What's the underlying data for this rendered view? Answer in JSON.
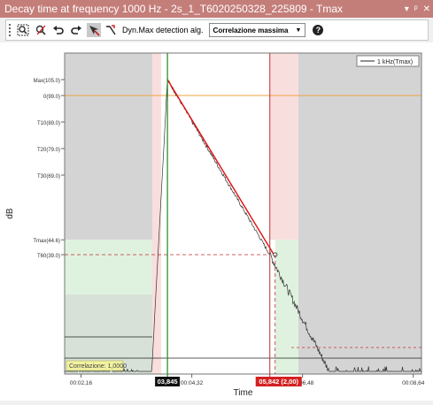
{
  "window": {
    "title": "Decay time at frequency 1000 Hz - 2s_1_T6020250328_225809 - Tmax",
    "controls": [
      "▾",
      "ᵖ",
      "✕"
    ]
  },
  "toolbar": {
    "icons": [
      "zoom-extents-icon",
      "zoom-reset-icon",
      "undo-icon",
      "redo-icon",
      "cursor-tool-icon",
      "dyn-max-icon",
      "help-icon"
    ],
    "dyn_label": "Dyn.Max detection alg.",
    "method_value": "Correlazione massima",
    "help_label": "?"
  },
  "colors": {
    "title_bar": "#c47e7a",
    "regression_line": "#e01010",
    "start_cursor": "#1a8a1a",
    "end_cursor": "#c03030",
    "orange_level": "#f0a040",
    "gray_region": "#d4d4d4",
    "pink_region": "#f9dede",
    "green_region": "#dff2df"
  },
  "chart_data": {
    "type": "line",
    "xlabel": "Time",
    "ylabel": "dB",
    "x_ticks": [
      "00:02,16",
      "00:04,32",
      "00:06,48",
      "00:08,64"
    ],
    "y_levels": [
      {
        "label": "Max(105.0)",
        "value": 105.0
      },
      {
        "label": "0(99.0)",
        "value": 99.0
      },
      {
        "label": "T10(89.0)",
        "value": 89.0
      },
      {
        "label": "T20(79.0)",
        "value": 79.0
      },
      {
        "label": "T30(69.0)",
        "value": 69.0
      },
      {
        "label": "Tmax(44.6)",
        "value": 44.6
      },
      {
        "label": "T60(39.0)",
        "value": 39.0
      }
    ],
    "ylim": [
      -6,
      115
    ],
    "xlim_s": [
      1.84,
      8.8
    ],
    "legend": {
      "label": "1 kHz(Tmax)",
      "placement": "top-right"
    },
    "correlation_label": "Correlazione: 1,0000",
    "start_cursor": {
      "label": "03,845",
      "time_s": 3.845
    },
    "end_cursor": {
      "label": "05,842",
      "extra": "(2,00)",
      "time_s": 5.842
    },
    "regression": {
      "start": [
        3.845,
        105.0
      ],
      "end": [
        5.842,
        39.0
      ]
    },
    "noise_floor_db": 0
  }
}
